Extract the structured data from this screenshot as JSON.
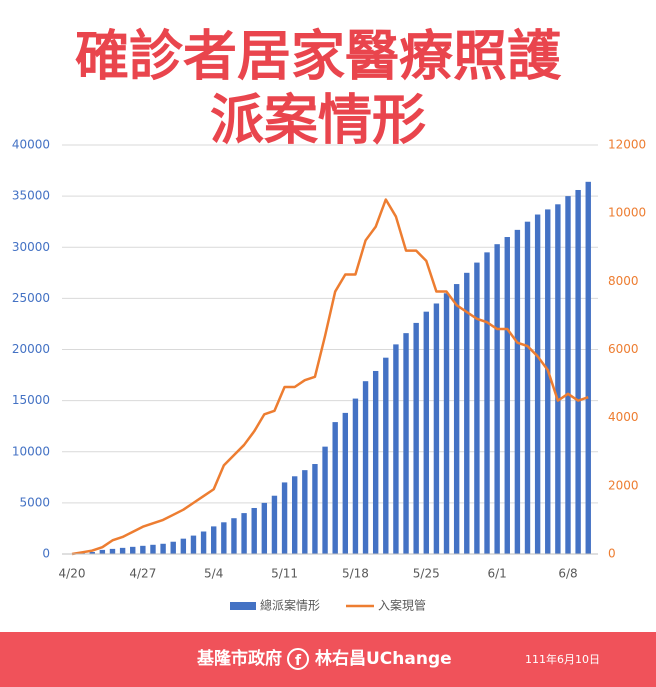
{
  "chart_data": {
    "type": "bar_line",
    "title": "確診者居家醫療照護",
    "subtitle": "派案情形",
    "categories": [
      "4/20",
      null,
      null,
      null,
      null,
      null,
      null,
      "4/27",
      null,
      null,
      null,
      null,
      null,
      null,
      "5/4",
      null,
      null,
      null,
      null,
      null,
      null,
      "5/11",
      null,
      null,
      null,
      null,
      null,
      null,
      "5/18",
      null,
      null,
      null,
      null,
      null,
      null,
      "5/25",
      null,
      null,
      null,
      null,
      null,
      null,
      "6/1",
      null,
      null,
      null,
      null,
      null,
      null,
      "6/8",
      null,
      null
    ],
    "series": [
      {
        "name": "總派案情形",
        "color": "#4472c4",
        "axis": "y",
        "values": [
          0,
          100,
          200,
          400,
          500,
          600,
          700,
          800,
          900,
          1000,
          1200,
          1500,
          1800,
          2200,
          2700,
          3100,
          3500,
          4000,
          4500,
          5000,
          5700,
          7000,
          7600,
          8200,
          8800,
          10500,
          12900,
          13800,
          15200,
          16900,
          17900,
          19200,
          20500,
          21600,
          22600,
          23700,
          24500,
          25500,
          26400,
          27500,
          28500,
          29500,
          30300,
          31000,
          31700,
          32500,
          33200,
          33700,
          34200,
          35000,
          35600,
          36400
        ]
      },
      {
        "name": "入案現管",
        "color": "#ed7d31",
        "axis": "y2",
        "values": [
          0,
          50,
          100,
          200,
          400,
          500,
          650,
          800,
          900,
          1000,
          1150,
          1300,
          1500,
          1700,
          1900,
          2600,
          2900,
          3200,
          3600,
          4100,
          4200,
          4900,
          4900,
          5100,
          5200,
          6400,
          7700,
          8200,
          8200,
          9200,
          9600,
          10400,
          9900,
          8900,
          8900,
          8600,
          7700,
          7700,
          7300,
          7100,
          6900,
          6800,
          6600,
          6600,
          6200,
          6100,
          5800,
          5400,
          4500,
          4700,
          4500,
          4600
        ]
      }
    ],
    "ylim": [
      0,
      40000
    ],
    "yticks": [
      0,
      5000,
      10000,
      15000,
      20000,
      25000,
      30000,
      35000,
      40000
    ],
    "y2lim": [
      0,
      12000
    ],
    "y2ticks": [
      0,
      2000,
      4000,
      6000,
      8000,
      10000,
      12000
    ],
    "grid": true,
    "legend": "bottom"
  },
  "footer": {
    "source": "基隆市政府",
    "page": "林右昌UChange",
    "date": "111年6月10日"
  }
}
